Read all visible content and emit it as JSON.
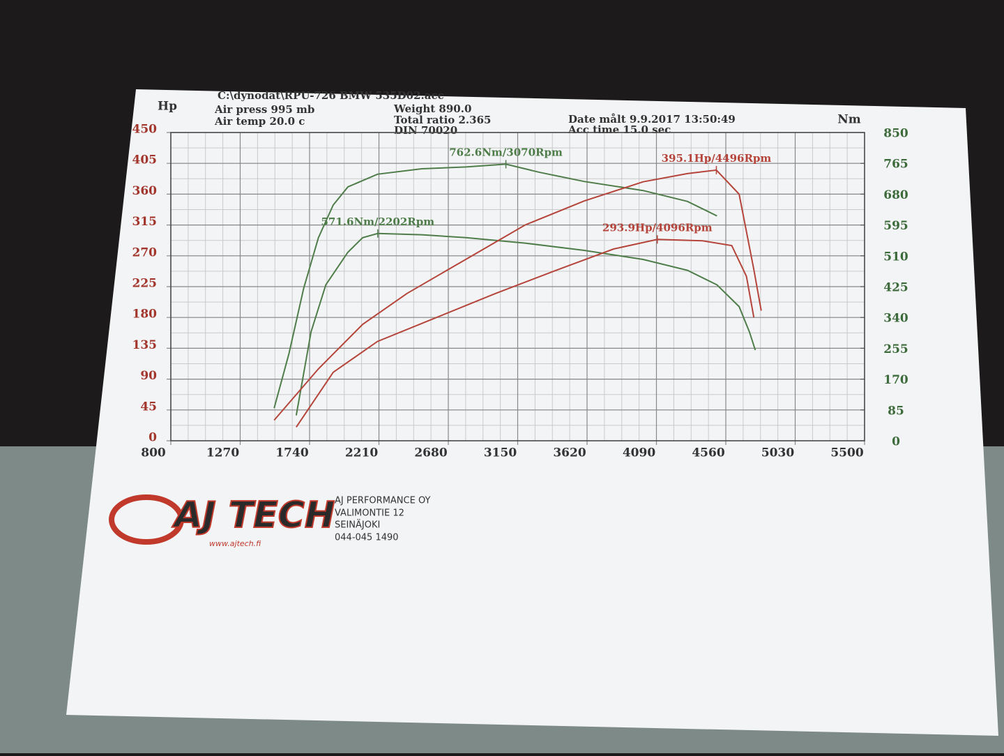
{
  "header": {
    "file": "C:\\dynodat\\RPU-726 BMW 535D02.acc",
    "air_press": "Air press  995 mb",
    "air_temp": "Air temp  20.0 c",
    "weight": "Weight   890.0",
    "total_ratio": "Total ratio 2.365",
    "din": "DIN 70020",
    "date": "Date målt 9.9.2017 13:50:49",
    "acc_time": "Acc time  15.0 sec"
  },
  "chart_data": {
    "type": "line",
    "ylabel": "Hp",
    "y2label": "Nm",
    "xlim": [
      800,
      5500
    ],
    "xticks": [
      800,
      1270,
      1740,
      2210,
      2680,
      3150,
      3620,
      4090,
      4560,
      5030,
      5500
    ],
    "ylim": [
      0,
      450
    ],
    "yticks": [
      0,
      45,
      90,
      135,
      180,
      225,
      270,
      315,
      360,
      405,
      450
    ],
    "y2lim": [
      0,
      850
    ],
    "y2ticks": [
      0,
      85,
      170,
      255,
      340,
      425,
      510,
      595,
      680,
      765,
      850
    ],
    "grid": true,
    "series": [
      {
        "color": "#4f7d4a",
        "axis": "y2",
        "x": [
          1500,
          1600,
          1700,
          1800,
          1900,
          2000,
          2200,
          2500,
          2800,
          3070,
          3300,
          3600,
          4000,
          4300,
          4500
        ],
        "values": [
          90,
          240,
          420,
          560,
          650,
          700,
          735,
          750,
          755,
          762.6,
          740,
          715,
          690,
          660,
          620
        ]
      },
      {
        "color": "#4f7d4a",
        "axis": "y2",
        "x": [
          1650,
          1750,
          1850,
          2000,
          2100,
          2202,
          2500,
          2800,
          3200,
          3600,
          4000,
          4300,
          4500,
          4650,
          4720,
          4760
        ],
        "values": [
          70,
          300,
          430,
          520,
          560,
          571.6,
          568,
          560,
          545,
          525,
          500,
          470,
          430,
          370,
          300,
          250
        ]
      },
      {
        "color": "#b5443a",
        "x": [
          1500,
          1800,
          2100,
          2400,
          2800,
          3200,
          3600,
          4000,
          4300,
          4496,
          4650,
          4750,
          4800
        ],
        "values": [
          30,
          105,
          170,
          215,
          265,
          315,
          350,
          378,
          390,
          395.1,
          360,
          250,
          190
        ]
      },
      {
        "color": "#b5443a",
        "x": [
          1650,
          1900,
          2200,
          2600,
          3000,
          3400,
          3800,
          4096,
          4400,
          4600,
          4700,
          4750
        ],
        "values": [
          20,
          100,
          145,
          180,
          215,
          248,
          280,
          293.9,
          292,
          285,
          240,
          180
        ]
      }
    ],
    "annotations": [
      "762.6Nm/3070Rpm",
      "571.6Nm/2202Rpm",
      "395.1Hp/4496Rpm",
      "293.9Hp/4096Rpm"
    ]
  },
  "footer": {
    "logo": "AJ TECH",
    "url": "www.ajtech.fi",
    "company": "AJ PERFORMANCE OY",
    "street": "VALIMONTIE 12",
    "city": "SEINÄJOKI",
    "phone": "044-045 1490"
  }
}
